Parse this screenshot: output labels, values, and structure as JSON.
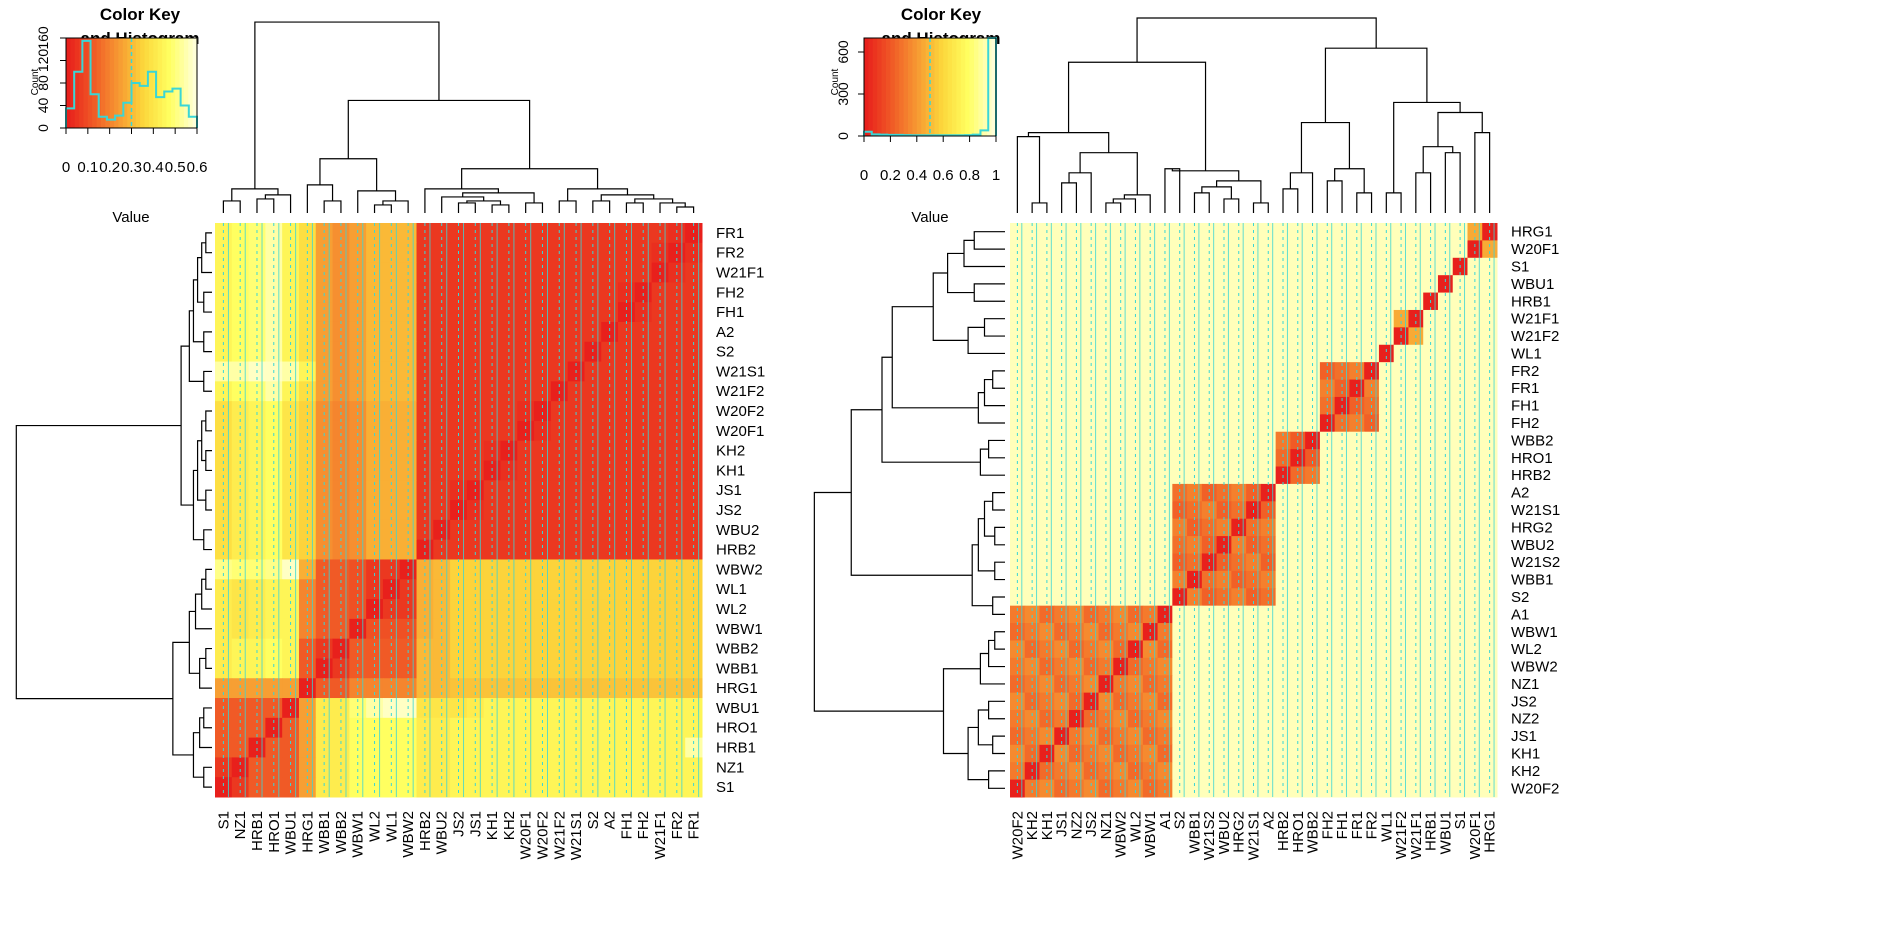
{
  "palette": {
    "stops": [
      "#e8201c",
      "#f05a26",
      "#f79a32",
      "#fcd83c",
      "#ffff60",
      "#ffffd8"
    ],
    "trace": "#3ad6d6",
    "frame": "#000000"
  },
  "chart_data": [
    {
      "type": "heatmap",
      "color_key": {
        "title": "Color Key and Histogram",
        "title_lines": [
          "Color Key",
          "and Histogram"
        ],
        "xlabel": "Value",
        "ylabel": "Count",
        "xticks": [
          "0",
          "0.1",
          "0.2",
          "0.3",
          "0.4",
          "0.5",
          "0.6"
        ],
        "xrange": [
          0,
          0.6
        ],
        "yticks": [
          "0",
          "40",
          "80",
          "120",
          "160"
        ],
        "yrange": [
          0,
          160
        ],
        "histogram": [
          35,
          100,
          155,
          60,
          20,
          15,
          22,
          45,
          80,
          75,
          100,
          55,
          65,
          70,
          40,
          20
        ],
        "vline": 0.3
      },
      "columns": [
        "S1",
        "NZ1",
        "HRB1",
        "HRO1",
        "WBU1",
        "HRG1",
        "WBB1",
        "WBB2",
        "WBW1",
        "WL2",
        "WL1",
        "WBW2",
        "HRB2",
        "WBU2",
        "JS2",
        "JS1",
        "KH1",
        "KH2",
        "W20F1",
        "W20F2",
        "W21F2",
        "W21S1",
        "S2",
        "A2",
        "FH1",
        "FH2",
        "W21F1",
        "FR2",
        "FR1"
      ],
      "rows": [
        "FR1",
        "FR2",
        "W21F1",
        "FH2",
        "FH1",
        "A2",
        "S2",
        "W21S1",
        "W21F2",
        "W20F2",
        "W20F1",
        "KH2",
        "KH1",
        "JS1",
        "JS2",
        "WBU2",
        "HRB2",
        "WBW2",
        "WL1",
        "WL2",
        "WBW1",
        "WBB2",
        "WBB1",
        "HRG1",
        "WBU1",
        "HRO1",
        "HRB1",
        "NZ1",
        "S1"
      ],
      "column_groups": [
        5,
        6,
        18
      ],
      "cell_values": [
        [
          0.45,
          0.48,
          0.5,
          0.55,
          0.45,
          0.38,
          0.25,
          0.22,
          0.25,
          0.3,
          0.3,
          0.3,
          0.05,
          0.05,
          0.05,
          0.05,
          0.05,
          0.05,
          0.05,
          0.05,
          0.05,
          0.05,
          0.05,
          0.05,
          0.05,
          0.05,
          0.05,
          0.03,
          0.0
        ],
        [
          0.45,
          0.48,
          0.5,
          0.55,
          0.45,
          0.38,
          0.25,
          0.22,
          0.25,
          0.3,
          0.3,
          0.3,
          0.05,
          0.05,
          0.05,
          0.05,
          0.05,
          0.05,
          0.05,
          0.05,
          0.05,
          0.05,
          0.05,
          0.05,
          0.05,
          0.05,
          0.03,
          0.0,
          0.03
        ],
        [
          0.45,
          0.48,
          0.5,
          0.55,
          0.45,
          0.38,
          0.25,
          0.22,
          0.25,
          0.3,
          0.3,
          0.3,
          0.05,
          0.05,
          0.05,
          0.05,
          0.05,
          0.05,
          0.05,
          0.05,
          0.05,
          0.05,
          0.05,
          0.05,
          0.05,
          0.05,
          0.0,
          0.03,
          0.05
        ],
        [
          0.45,
          0.48,
          0.5,
          0.55,
          0.45,
          0.38,
          0.25,
          0.22,
          0.25,
          0.3,
          0.3,
          0.3,
          0.05,
          0.05,
          0.05,
          0.05,
          0.05,
          0.05,
          0.05,
          0.05,
          0.05,
          0.05,
          0.05,
          0.05,
          0.03,
          0.0,
          0.05,
          0.05,
          0.05
        ],
        [
          0.45,
          0.48,
          0.5,
          0.55,
          0.45,
          0.38,
          0.25,
          0.22,
          0.25,
          0.3,
          0.3,
          0.3,
          0.05,
          0.05,
          0.05,
          0.05,
          0.05,
          0.05,
          0.05,
          0.05,
          0.05,
          0.05,
          0.05,
          0.05,
          0.0,
          0.03,
          0.05,
          0.05,
          0.05
        ],
        [
          0.45,
          0.48,
          0.5,
          0.55,
          0.45,
          0.38,
          0.25,
          0.22,
          0.25,
          0.3,
          0.3,
          0.3,
          0.05,
          0.05,
          0.05,
          0.05,
          0.05,
          0.05,
          0.05,
          0.05,
          0.05,
          0.05,
          0.05,
          0.0,
          0.05,
          0.05,
          0.05,
          0.05,
          0.05
        ],
        [
          0.45,
          0.48,
          0.5,
          0.55,
          0.45,
          0.38,
          0.25,
          0.22,
          0.25,
          0.3,
          0.3,
          0.3,
          0.05,
          0.05,
          0.05,
          0.05,
          0.05,
          0.05,
          0.05,
          0.05,
          0.05,
          0.05,
          0.0,
          0.05,
          0.05,
          0.05,
          0.05,
          0.05,
          0.05
        ],
        [
          0.55,
          0.55,
          0.58,
          0.58,
          0.55,
          0.45,
          0.25,
          0.22,
          0.25,
          0.3,
          0.3,
          0.3,
          0.05,
          0.05,
          0.05,
          0.05,
          0.05,
          0.05,
          0.05,
          0.05,
          0.05,
          0.0,
          0.05,
          0.05,
          0.05,
          0.05,
          0.05,
          0.05,
          0.05
        ],
        [
          0.45,
          0.48,
          0.5,
          0.55,
          0.45,
          0.38,
          0.25,
          0.22,
          0.25,
          0.3,
          0.3,
          0.3,
          0.05,
          0.05,
          0.05,
          0.05,
          0.05,
          0.05,
          0.05,
          0.05,
          0.0,
          0.05,
          0.05,
          0.05,
          0.05,
          0.05,
          0.05,
          0.05,
          0.05
        ],
        [
          0.38,
          0.42,
          0.45,
          0.48,
          0.4,
          0.35,
          0.22,
          0.2,
          0.22,
          0.28,
          0.28,
          0.28,
          0.05,
          0.05,
          0.05,
          0.05,
          0.05,
          0.05,
          0.03,
          0.0,
          0.05,
          0.05,
          0.05,
          0.05,
          0.05,
          0.05,
          0.05,
          0.05,
          0.05
        ],
        [
          0.38,
          0.42,
          0.45,
          0.48,
          0.4,
          0.35,
          0.22,
          0.2,
          0.22,
          0.28,
          0.28,
          0.28,
          0.05,
          0.05,
          0.05,
          0.05,
          0.05,
          0.05,
          0.0,
          0.03,
          0.05,
          0.05,
          0.05,
          0.05,
          0.05,
          0.05,
          0.05,
          0.05,
          0.05
        ],
        [
          0.38,
          0.42,
          0.45,
          0.48,
          0.4,
          0.35,
          0.22,
          0.2,
          0.22,
          0.28,
          0.28,
          0.28,
          0.05,
          0.05,
          0.05,
          0.05,
          0.03,
          0.0,
          0.05,
          0.05,
          0.05,
          0.05,
          0.05,
          0.05,
          0.05,
          0.05,
          0.05,
          0.05,
          0.05
        ],
        [
          0.38,
          0.42,
          0.45,
          0.48,
          0.4,
          0.35,
          0.22,
          0.2,
          0.22,
          0.28,
          0.28,
          0.28,
          0.05,
          0.05,
          0.05,
          0.05,
          0.0,
          0.03,
          0.05,
          0.05,
          0.05,
          0.05,
          0.05,
          0.05,
          0.05,
          0.05,
          0.05,
          0.05,
          0.05
        ],
        [
          0.38,
          0.42,
          0.45,
          0.48,
          0.4,
          0.35,
          0.22,
          0.2,
          0.22,
          0.28,
          0.28,
          0.28,
          0.05,
          0.05,
          0.03,
          0.0,
          0.05,
          0.05,
          0.05,
          0.05,
          0.05,
          0.05,
          0.05,
          0.05,
          0.05,
          0.05,
          0.05,
          0.05,
          0.05
        ],
        [
          0.38,
          0.42,
          0.45,
          0.48,
          0.4,
          0.35,
          0.22,
          0.2,
          0.22,
          0.28,
          0.28,
          0.28,
          0.05,
          0.05,
          0.0,
          0.03,
          0.05,
          0.05,
          0.05,
          0.05,
          0.05,
          0.05,
          0.05,
          0.05,
          0.05,
          0.05,
          0.05,
          0.05,
          0.05
        ],
        [
          0.38,
          0.42,
          0.45,
          0.48,
          0.4,
          0.35,
          0.22,
          0.2,
          0.22,
          0.28,
          0.28,
          0.28,
          0.05,
          0.0,
          0.05,
          0.05,
          0.05,
          0.05,
          0.05,
          0.05,
          0.05,
          0.05,
          0.05,
          0.05,
          0.05,
          0.05,
          0.05,
          0.05,
          0.05
        ],
        [
          0.38,
          0.42,
          0.45,
          0.48,
          0.4,
          0.35,
          0.22,
          0.2,
          0.22,
          0.28,
          0.28,
          0.28,
          0.0,
          0.05,
          0.05,
          0.05,
          0.05,
          0.05,
          0.05,
          0.05,
          0.05,
          0.05,
          0.05,
          0.05,
          0.05,
          0.05,
          0.05,
          0.05,
          0.05
        ],
        [
          0.52,
          0.5,
          0.5,
          0.52,
          0.58,
          0.28,
          0.12,
          0.12,
          0.1,
          0.05,
          0.05,
          0.0,
          0.28,
          0.3,
          0.35,
          0.35,
          0.35,
          0.35,
          0.35,
          0.35,
          0.35,
          0.35,
          0.35,
          0.35,
          0.35,
          0.35,
          0.35,
          0.35,
          0.35
        ],
        [
          0.42,
          0.4,
          0.42,
          0.45,
          0.45,
          0.2,
          0.12,
          0.12,
          0.1,
          0.05,
          0.0,
          0.05,
          0.28,
          0.3,
          0.35,
          0.35,
          0.35,
          0.35,
          0.35,
          0.35,
          0.35,
          0.35,
          0.35,
          0.35,
          0.35,
          0.35,
          0.35,
          0.35,
          0.35
        ],
        [
          0.42,
          0.4,
          0.42,
          0.45,
          0.45,
          0.2,
          0.12,
          0.12,
          0.1,
          0.0,
          0.05,
          0.05,
          0.28,
          0.3,
          0.35,
          0.35,
          0.35,
          0.35,
          0.35,
          0.35,
          0.35,
          0.35,
          0.35,
          0.35,
          0.35,
          0.35,
          0.35,
          0.35,
          0.35
        ],
        [
          0.42,
          0.4,
          0.42,
          0.45,
          0.45,
          0.2,
          0.12,
          0.12,
          0.0,
          0.1,
          0.1,
          0.1,
          0.28,
          0.3,
          0.35,
          0.35,
          0.35,
          0.35,
          0.35,
          0.35,
          0.35,
          0.35,
          0.35,
          0.35,
          0.35,
          0.35,
          0.35,
          0.35,
          0.35
        ],
        [
          0.42,
          0.45,
          0.45,
          0.48,
          0.45,
          0.12,
          0.05,
          0.0,
          0.12,
          0.12,
          0.12,
          0.12,
          0.3,
          0.3,
          0.35,
          0.35,
          0.35,
          0.35,
          0.35,
          0.35,
          0.35,
          0.35,
          0.35,
          0.35,
          0.35,
          0.35,
          0.35,
          0.35,
          0.35
        ],
        [
          0.42,
          0.45,
          0.45,
          0.48,
          0.45,
          0.12,
          0.0,
          0.05,
          0.12,
          0.12,
          0.12,
          0.12,
          0.3,
          0.3,
          0.35,
          0.35,
          0.35,
          0.35,
          0.35,
          0.35,
          0.35,
          0.35,
          0.35,
          0.35,
          0.35,
          0.35,
          0.35,
          0.35,
          0.35
        ],
        [
          0.25,
          0.25,
          0.25,
          0.25,
          0.25,
          0.0,
          0.12,
          0.12,
          0.2,
          0.2,
          0.2,
          0.2,
          0.3,
          0.3,
          0.32,
          0.32,
          0.32,
          0.32,
          0.32,
          0.32,
          0.32,
          0.32,
          0.32,
          0.32,
          0.32,
          0.32,
          0.32,
          0.32,
          0.32
        ],
        [
          0.12,
          0.12,
          0.12,
          0.12,
          0.0,
          0.25,
          0.42,
          0.42,
          0.5,
          0.55,
          0.58,
          0.58,
          0.4,
          0.4,
          0.4,
          0.42,
          0.45,
          0.45,
          0.45,
          0.45,
          0.45,
          0.45,
          0.45,
          0.45,
          0.45,
          0.45,
          0.45,
          0.45,
          0.45
        ],
        [
          0.12,
          0.12,
          0.12,
          0.0,
          0.12,
          0.25,
          0.42,
          0.42,
          0.48,
          0.48,
          0.48,
          0.48,
          0.42,
          0.42,
          0.45,
          0.45,
          0.45,
          0.45,
          0.45,
          0.45,
          0.45,
          0.45,
          0.45,
          0.45,
          0.45,
          0.45,
          0.45,
          0.45,
          0.45
        ],
        [
          0.12,
          0.12,
          0.0,
          0.12,
          0.12,
          0.25,
          0.42,
          0.42,
          0.48,
          0.48,
          0.48,
          0.48,
          0.42,
          0.42,
          0.45,
          0.45,
          0.45,
          0.45,
          0.45,
          0.45,
          0.45,
          0.45,
          0.45,
          0.45,
          0.45,
          0.45,
          0.45,
          0.45,
          0.55
        ],
        [
          0.05,
          0.0,
          0.12,
          0.12,
          0.12,
          0.25,
          0.42,
          0.42,
          0.48,
          0.48,
          0.48,
          0.48,
          0.42,
          0.42,
          0.45,
          0.45,
          0.45,
          0.45,
          0.45,
          0.45,
          0.45,
          0.45,
          0.45,
          0.45,
          0.45,
          0.45,
          0.45,
          0.45,
          0.45
        ],
        [
          0.0,
          0.05,
          0.12,
          0.12,
          0.12,
          0.25,
          0.42,
          0.42,
          0.48,
          0.48,
          0.48,
          0.48,
          0.42,
          0.42,
          0.45,
          0.45,
          0.45,
          0.45,
          0.45,
          0.45,
          0.45,
          0.45,
          0.45,
          0.45,
          0.45,
          0.45,
          0.45,
          0.45,
          0.45
        ]
      ]
    },
    {
      "type": "heatmap",
      "color_key": {
        "title": "Color Key and Histogram",
        "title_lines": [
          "Color Key",
          "and Histogram"
        ],
        "xlabel": "Value",
        "ylabel": "Count",
        "xticks": [
          "0",
          "0.2",
          "0.4",
          "0.6",
          "0.8",
          "1"
        ],
        "xrange": [
          0,
          1
        ],
        "yticks": [
          "0",
          "300",
          "600"
        ],
        "yrange": [
          0,
          700
        ],
        "histogram": [
          30,
          12,
          10,
          8,
          8,
          6,
          5,
          5,
          5,
          5,
          5,
          5,
          5,
          6,
          10,
          40,
          700
        ],
        "vline": 0.5
      },
      "columns": [
        "W20F2",
        "KH2",
        "KH1",
        "JS1",
        "NZ2",
        "JS2",
        "NZ1",
        "WBW2",
        "WL2",
        "WBW1",
        "A1",
        "S2",
        "WBB1",
        "W21S2",
        "WBU2",
        "HRG2",
        "W21S1",
        "A2",
        "HRB2",
        "HRO1",
        "WBB2",
        "FH2",
        "FH1",
        "FR1",
        "FR2",
        "WL1",
        "W21F2",
        "W21F1",
        "HRB1",
        "WBU1",
        "S1",
        "W20F1",
        "HRG1"
      ],
      "rows": [
        "HRG1",
        "W20F1",
        "S1",
        "WBU1",
        "HRB1",
        "W21F1",
        "W21F2",
        "WL1",
        "FR2",
        "FR1",
        "FH1",
        "FH2",
        "WBB2",
        "HRO1",
        "HRB2",
        "A2",
        "W21S1",
        "HRG2",
        "WBU2",
        "W21S2",
        "WBB1",
        "S2",
        "A1",
        "WBW1",
        "WL2",
        "WBW2",
        "NZ1",
        "JS2",
        "NZ2",
        "JS1",
        "KH1",
        "KH2",
        "W20F2"
      ],
      "blocks": [
        {
          "start": 0,
          "end": 10,
          "value": 0.25
        },
        {
          "start": 11,
          "end": 17,
          "value": 0.22
        },
        {
          "start": 18,
          "end": 20,
          "value": 0.2
        },
        {
          "start": 21,
          "end": 24,
          "value": 0.22
        },
        {
          "start": 26,
          "end": 27,
          "value": 0.35
        },
        {
          "start": 31,
          "end": 32,
          "value": 0.45
        }
      ],
      "background": 0.95
    }
  ]
}
